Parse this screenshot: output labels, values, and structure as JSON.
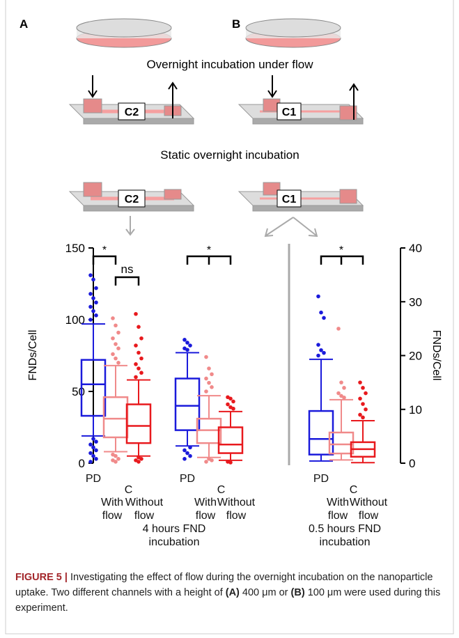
{
  "panel_labels": [
    "A",
    "B"
  ],
  "diagram": {
    "flow_title": "Overnight incubation under flow",
    "static_title": "Static overnight incubation",
    "chips": [
      "C2",
      "C1",
      "C2",
      "C1"
    ]
  },
  "chart_data": {
    "type": "box",
    "ylabel": "FNDs/Cell",
    "ylim": [
      0,
      150
    ],
    "yticks": [
      0,
      50,
      100,
      150
    ],
    "y2label": "FNDs/Cell",
    "y2lim": [
      0,
      40
    ],
    "y2ticks": [
      0,
      10,
      20,
      30,
      40
    ],
    "group_labels": [
      "4 hours FND incubation",
      "0.5 hours FND incubation"
    ],
    "sets": [
      {
        "axis": "y",
        "labels": [
          "PD",
          "C",
          "With flow",
          "Without flow"
        ],
        "significance": [
          "*",
          "ns"
        ],
        "boxes": [
          {
            "color": "#1a1adb",
            "whislo": 19,
            "q1": 33,
            "med": 55,
            "q3": 72,
            "whishi": 97,
            "fliers": [
              131,
              128,
              122,
              118,
              115,
              112,
              109,
              106,
              103,
              100,
              17,
              15,
              13,
              11,
              9,
              7,
              5,
              3,
              1
            ]
          },
          {
            "color": "#f08a8a",
            "whislo": 8,
            "q1": 18,
            "med": 31,
            "q3": 46,
            "whishi": 68,
            "fliers": [
              101,
              96,
              91,
              87,
              83,
              80,
              76,
              73,
              70,
              6,
              5,
              3,
              2,
              1
            ]
          },
          {
            "color": "#e8191d",
            "whislo": 5,
            "q1": 14,
            "med": 26,
            "q3": 41,
            "whishi": 58,
            "fliers": [
              104,
              95,
              87,
              82,
              77,
              73,
              69,
              66,
              63,
              60,
              4,
              3,
              2,
              1
            ]
          }
        ]
      },
      {
        "axis": "y",
        "labels": [
          "PD",
          "C",
          "With flow",
          "Without flow"
        ],
        "significance": [
          "*"
        ],
        "boxes": [
          {
            "color": "#1a1adb",
            "whislo": 12,
            "q1": 23,
            "med": 40,
            "q3": 59,
            "whishi": 77,
            "fliers": [
              86,
              84,
              82,
              80,
              79,
              11,
              9,
              7,
              5,
              3
            ]
          },
          {
            "color": "#f08a8a",
            "whislo": 4,
            "q1": 14,
            "med": 23,
            "q3": 31,
            "whishi": 47,
            "fliers": [
              74,
              66,
              62,
              59,
              56,
              53,
              50,
              3,
              2,
              1
            ]
          },
          {
            "color": "#e8191d",
            "whislo": 2,
            "q1": 7,
            "med": 13,
            "q3": 25,
            "whishi": 36,
            "fliers": [
              46,
              45,
              43,
              41,
              39,
              38,
              1,
              0.5
            ]
          }
        ]
      },
      {
        "axis": "y2",
        "labels": [
          "PD",
          "C",
          "With flow",
          "Without flow"
        ],
        "significance": [
          "*"
        ],
        "boxes": [
          {
            "color": "#1a1adb",
            "whislo": 0.4,
            "q1": 1.6,
            "med": 4.5,
            "q3": 9.7,
            "whishi": 19.3,
            "fliers": [
              31,
              28,
              27,
              22,
              21,
              20.5,
              20
            ]
          },
          {
            "color": "#f08a8a",
            "whislo": 0.6,
            "q1": 1.8,
            "med": 3.5,
            "q3": 5.7,
            "whishi": 11.8,
            "fliers": [
              25,
              15,
              14,
              13,
              12.5,
              12.2
            ]
          },
          {
            "color": "#e8191d",
            "whislo": 0.1,
            "q1": 1.2,
            "med": 2.6,
            "q3": 3.9,
            "whishi": 7.9,
            "fliers": [
              15,
              14,
              13,
              12,
              11,
              10,
              9,
              8.5
            ]
          }
        ]
      }
    ]
  },
  "caption": {
    "label": "FIGURE 5 |",
    "text_1": " Investigating the effect of flow during the overnight incubation on the nanoparticle uptake. Two different channels with a height of ",
    "bold_a": "(A)",
    "text_2": " 400 μm or ",
    "bold_b": "(B)",
    "text_3": " 100 μm were used during this experiment."
  }
}
